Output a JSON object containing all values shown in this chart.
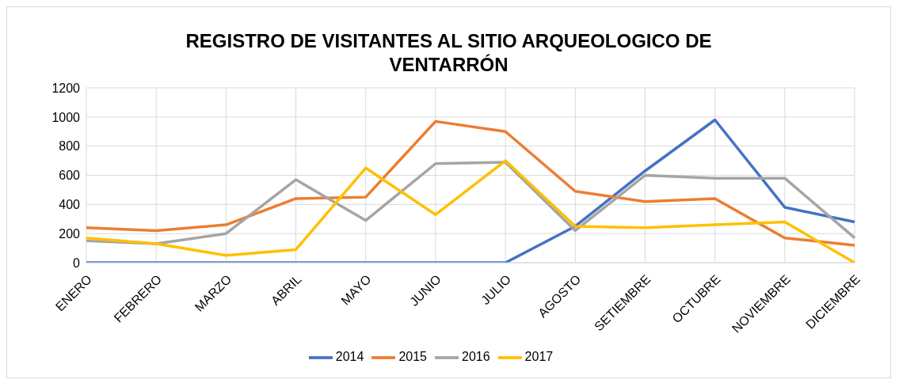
{
  "chart_data": {
    "type": "line",
    "title": "REGISTRO DE VISITANTES AL SITIO ARQUEOLOGICO DE VENTARRÓN",
    "categories": [
      "ENERO",
      "FEBRERO",
      "MARZO",
      "ABRIL",
      "MAYO",
      "JUNIO",
      "JULIO",
      "AGOSTO",
      "SETIEMBRE",
      "OCTUBRE",
      "NOVIEMBRE",
      "DICIEMBRE"
    ],
    "series": [
      {
        "name": "2014",
        "color": "#4472c4",
        "values": [
          0,
          0,
          0,
          0,
          0,
          0,
          0,
          250,
          630,
          980,
          380,
          280
        ]
      },
      {
        "name": "2015",
        "color": "#ed7d31",
        "values": [
          240,
          220,
          260,
          440,
          450,
          970,
          900,
          490,
          420,
          440,
          170,
          120
        ]
      },
      {
        "name": "2016",
        "color": "#a5a5a5",
        "values": [
          150,
          130,
          200,
          570,
          290,
          680,
          690,
          220,
          600,
          580,
          580,
          170
        ]
      },
      {
        "name": "2017",
        "color": "#ffc000",
        "values": [
          170,
          130,
          50,
          90,
          650,
          330,
          700,
          250,
          240,
          260,
          280,
          0
        ]
      }
    ],
    "ylim": [
      0,
      1200
    ],
    "yticks": [
      0,
      200,
      400,
      600,
      800,
      1000,
      1200
    ],
    "grid": true,
    "legend": "bottom",
    "marker": "none",
    "line_style": "solid"
  }
}
